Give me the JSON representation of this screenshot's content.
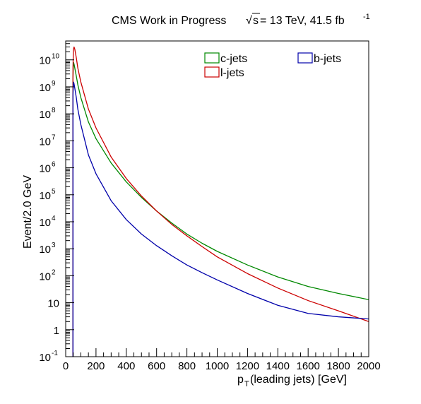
{
  "chart_data": {
    "type": "line",
    "title_parts": {
      "main": "CMS Work in Progress",
      "sqrt": "√",
      "s": "s",
      "energy": " = 13 TeV, 41.5 fb",
      "exp": "-1"
    },
    "xlabel": {
      "p": "p",
      "sub": "T",
      "rest": " (leading jets) [GeV]"
    },
    "ylabel": "Event/2.0 GeV",
    "xlim": [
      0,
      2000
    ],
    "ylim_log10": [
      -1,
      10.7
    ],
    "log_y": true,
    "grid": false,
    "legend_placement": "top-right",
    "x_tick_labels": [
      "0",
      "200",
      "400",
      "600",
      "800",
      "1000",
      "1200",
      "1400",
      "1600",
      "1800",
      "2000"
    ],
    "y_tick_labels": [
      {
        "base": "10",
        "exp": "-1"
      },
      {
        "base": "1",
        "exp": ""
      },
      {
        "base": "10",
        "exp": ""
      },
      {
        "base": "10",
        "exp": "2"
      },
      {
        "base": "10",
        "exp": "3"
      },
      {
        "base": "10",
        "exp": "4"
      },
      {
        "base": "10",
        "exp": "5"
      },
      {
        "base": "10",
        "exp": "6"
      },
      {
        "base": "10",
        "exp": "7"
      },
      {
        "base": "10",
        "exp": "8"
      },
      {
        "base": "10",
        "exp": "9"
      },
      {
        "base": "10",
        "exp": "10"
      }
    ],
    "series": [
      {
        "name": "c-jets",
        "color": "#008800",
        "x": [
          48,
          50,
          52,
          55,
          60,
          70,
          80,
          100,
          150,
          200,
          300,
          400,
          500,
          600,
          700,
          800,
          900,
          1000,
          1200,
          1400,
          1600,
          1800,
          2000
        ],
        "y": [
          2000000000.0,
          5000000000.0,
          8000000000.0,
          7000000000.0,
          5000000000.0,
          2500000000.0,
          1200000000.0,
          400000000.0,
          50000000.0,
          12000000.0,
          1500000.0,
          300000.0,
          80000.0,
          25000.0,
          9000.0,
          3500.0,
          1600.0,
          800.0,
          250.0,
          90.0,
          40.0,
          22.0,
          13.0
        ]
      },
      {
        "name": "l-jets",
        "color": "#cc0000",
        "x": [
          48,
          50,
          52,
          55,
          60,
          70,
          80,
          100,
          150,
          200,
          300,
          400,
          500,
          600,
          700,
          800,
          900,
          1000,
          1200,
          1400,
          1600,
          1800,
          2000
        ],
        "y": [
          5000000000.0,
          15000000000.0,
          25000000000.0,
          30000000000.0,
          25000000000.0,
          12000000000.0,
          5000000000.0,
          1500000000.0,
          150000000.0,
          30000000.0,
          2500000.0,
          400000.0,
          90000.0,
          25000.0,
          8000.0,
          3000.0,
          1200.0,
          500.0,
          120.0,
          35.0,
          12.0,
          5.0,
          2.0
        ]
      },
      {
        "name": "b-jets",
        "color": "#0000aa",
        "x": [
          48,
          50,
          52,
          55,
          60,
          70,
          80,
          100,
          150,
          200,
          300,
          400,
          500,
          600,
          700,
          800,
          900,
          1000,
          1200,
          1400,
          1600,
          1800,
          2000
        ],
        "y": [
          500000000.0,
          1000000000.0,
          1500000000.0,
          1300000000.0,
          900000000.0,
          400000000.0,
          150000000.0,
          40000000.0,
          3000000.0,
          600000.0,
          60000.0,
          12000.0,
          3500.0,
          1300.0,
          550.0,
          250.0,
          130.0,
          70.0,
          22.0,
          8.0,
          4.0,
          3.0,
          2.5
        ]
      }
    ]
  }
}
